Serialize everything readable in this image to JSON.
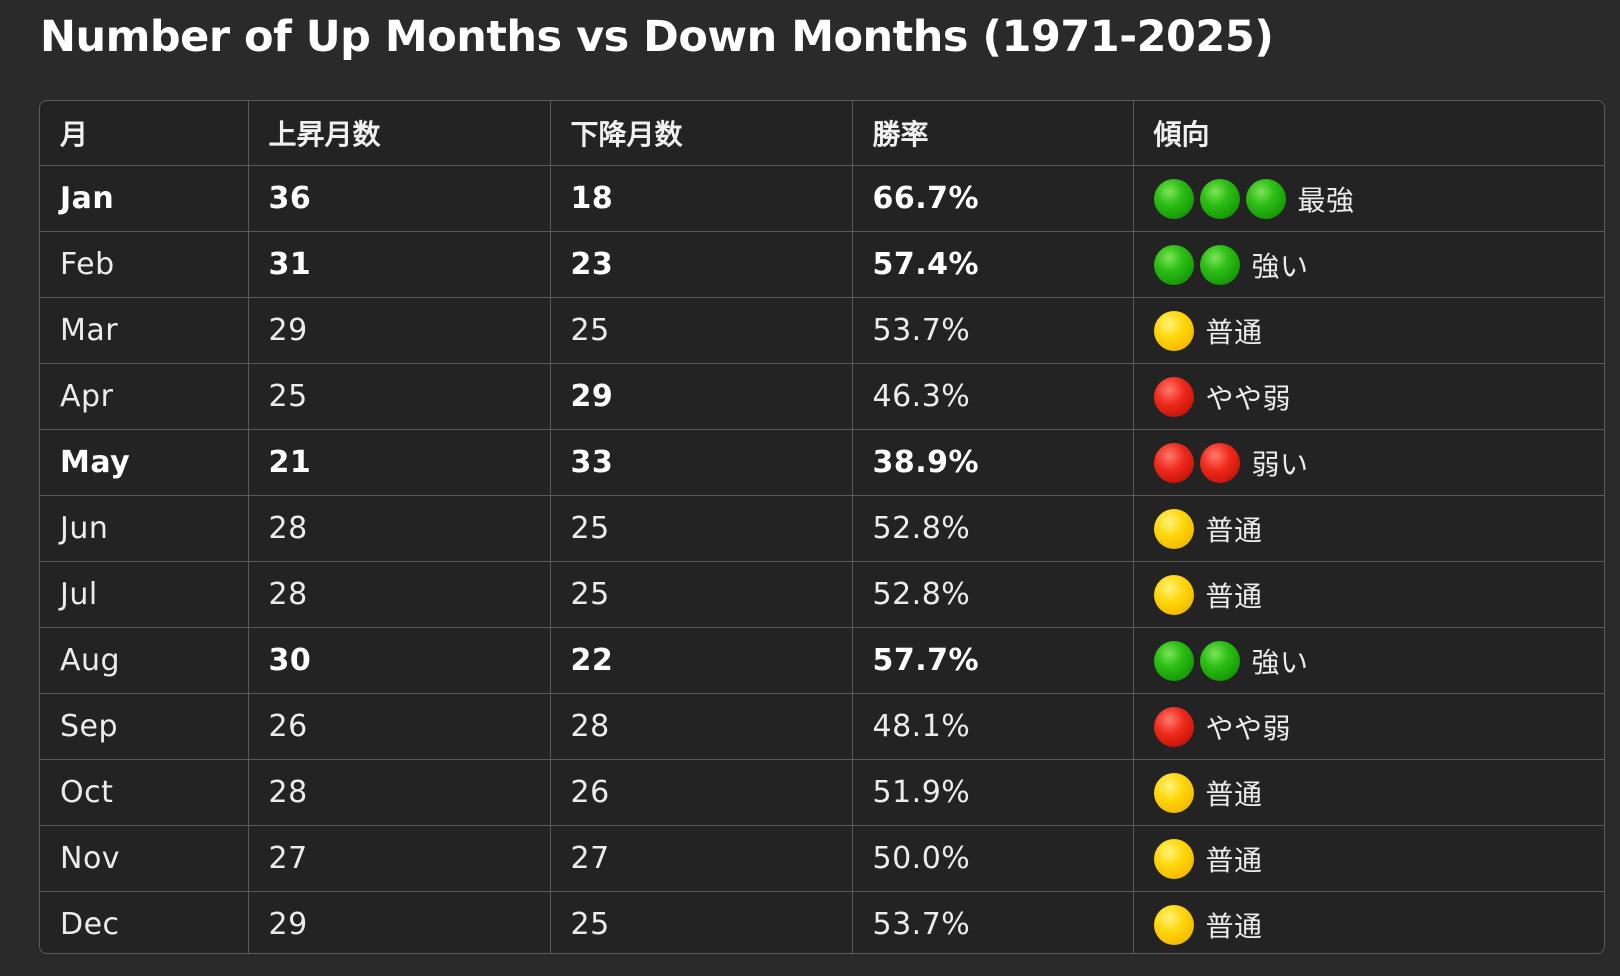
{
  "title": "Number of Up Months vs Down Months (1971-2025)",
  "colors": {
    "background": "#2a2a2b",
    "green": "#1fae0d",
    "yellow": "#ffd20a",
    "red": "#e0241a"
  },
  "table": {
    "headers": [
      "月",
      "上昇月数",
      "下降月数",
      "勝率",
      "傾向"
    ],
    "rows": [
      {
        "month": "Jan",
        "up": "36",
        "down": "18",
        "rate": "66.7%",
        "dots": [
          "green-circle-icon",
          "green-circle-icon",
          "green-circle-icon"
        ],
        "trend": "最強",
        "bold": [
          true,
          true,
          true,
          true
        ]
      },
      {
        "month": "Feb",
        "up": "31",
        "down": "23",
        "rate": "57.4%",
        "dots": [
          "green-circle-icon",
          "green-circle-icon"
        ],
        "trend": "強い",
        "bold": [
          false,
          true,
          true,
          true
        ]
      },
      {
        "month": "Mar",
        "up": "29",
        "down": "25",
        "rate": "53.7%",
        "dots": [
          "yellow-circle-icon"
        ],
        "trend": "普通",
        "bold": [
          false,
          false,
          false,
          false
        ]
      },
      {
        "month": "Apr",
        "up": "25",
        "down": "29",
        "rate": "46.3%",
        "dots": [
          "red-circle-icon"
        ],
        "trend": "やや弱",
        "bold": [
          false,
          false,
          true,
          false
        ]
      },
      {
        "month": "May",
        "up": "21",
        "down": "33",
        "rate": "38.9%",
        "dots": [
          "red-circle-icon",
          "red-circle-icon"
        ],
        "trend": "弱い",
        "bold": [
          true,
          true,
          true,
          true
        ]
      },
      {
        "month": "Jun",
        "up": "28",
        "down": "25",
        "rate": "52.8%",
        "dots": [
          "yellow-circle-icon"
        ],
        "trend": "普通",
        "bold": [
          false,
          false,
          false,
          false
        ]
      },
      {
        "month": "Jul",
        "up": "28",
        "down": "25",
        "rate": "52.8%",
        "dots": [
          "yellow-circle-icon"
        ],
        "trend": "普通",
        "bold": [
          false,
          false,
          false,
          false
        ]
      },
      {
        "month": "Aug",
        "up": "30",
        "down": "22",
        "rate": "57.7%",
        "dots": [
          "green-circle-icon",
          "green-circle-icon"
        ],
        "trend": "強い",
        "bold": [
          false,
          true,
          true,
          true
        ]
      },
      {
        "month": "Sep",
        "up": "26",
        "down": "28",
        "rate": "48.1%",
        "dots": [
          "red-circle-icon"
        ],
        "trend": "やや弱",
        "bold": [
          false,
          false,
          false,
          false
        ]
      },
      {
        "month": "Oct",
        "up": "28",
        "down": "26",
        "rate": "51.9%",
        "dots": [
          "yellow-circle-icon"
        ],
        "trend": "普通",
        "bold": [
          false,
          false,
          false,
          false
        ]
      },
      {
        "month": "Nov",
        "up": "27",
        "down": "27",
        "rate": "50.0%",
        "dots": [
          "yellow-circle-icon"
        ],
        "trend": "普通",
        "bold": [
          false,
          false,
          false,
          false
        ]
      },
      {
        "month": "Dec",
        "up": "29",
        "down": "25",
        "rate": "53.7%",
        "dots": [
          "yellow-circle-icon"
        ],
        "trend": "普通",
        "bold": [
          false,
          false,
          false,
          false
        ]
      }
    ]
  }
}
